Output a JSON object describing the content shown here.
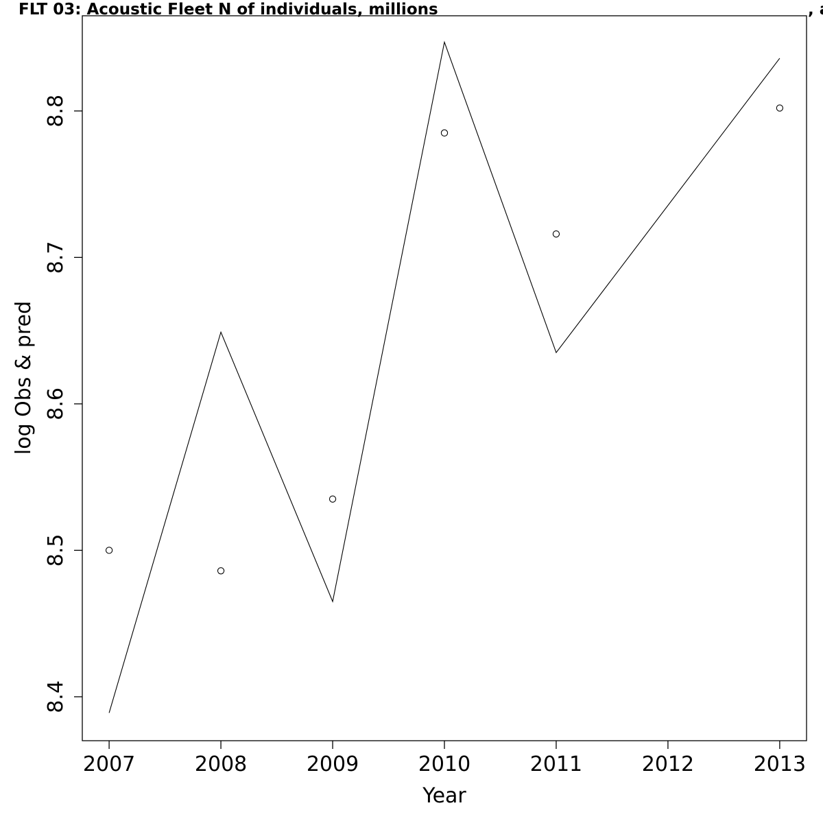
{
  "chart_data": {
    "type": "line",
    "title": "FLT 03: Acoustic Fleet   N of individuals, millions",
    "title_suffix": ", a",
    "xlabel": "Year",
    "ylabel": "log Obs & pred",
    "xlim": [
      2006.76,
      2013.24
    ],
    "ylim": [
      8.37,
      8.865
    ],
    "x_ticks": [
      2007,
      2008,
      2009,
      2010,
      2011,
      2012,
      2013
    ],
    "x_tick_labels": [
      "2007",
      "2008",
      "2009",
      "2010",
      "2011",
      "2012",
      "2013"
    ],
    "y_ticks": [
      8.4,
      8.5,
      8.6,
      8.7,
      8.8
    ],
    "y_tick_labels": [
      "8.4",
      "8.5",
      "8.6",
      "8.7",
      "8.8"
    ],
    "grid": false,
    "legend": "none",
    "series": [
      {
        "kind": "line",
        "x": [
          2007,
          2008,
          2009,
          2010,
          2011,
          2013
        ],
        "y": [
          8.389,
          8.649,
          8.465,
          8.847,
          8.635,
          8.836
        ]
      },
      {
        "kind": "points",
        "x": [
          2007,
          2008,
          2009,
          2010,
          2011,
          2013
        ],
        "y": [
          8.5,
          8.486,
          8.535,
          8.785,
          8.716,
          8.802
        ]
      }
    ]
  }
}
